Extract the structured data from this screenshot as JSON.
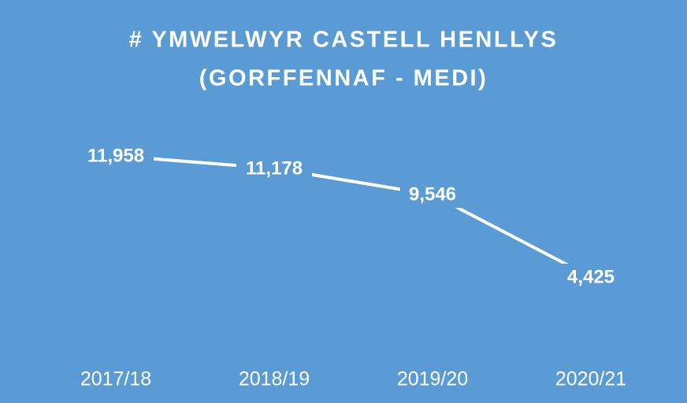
{
  "chart_data": {
    "type": "line",
    "title": [
      "# YMWELWYR CASTELL HENLLYS",
      "(GORFFENNAF - MEDI)"
    ],
    "categories": [
      "2017/18",
      "2018/19",
      "2019/20",
      "2020/21"
    ],
    "values": [
      11958,
      11178,
      9546,
      4425
    ],
    "value_labels": [
      "11,958",
      "11,178",
      "9,546",
      "4,425"
    ],
    "color": "#ffffff",
    "background": "#5b9bd5",
    "drop_lines": true
  }
}
